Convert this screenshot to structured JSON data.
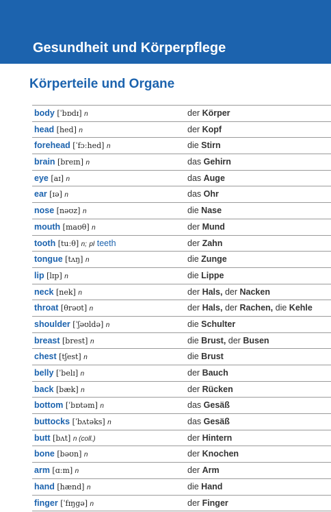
{
  "header": {
    "title": "Gesundheit und Körperpflege",
    "bg_color": "#1c63ae"
  },
  "section": {
    "title": "Körperteile und Organe",
    "color": "#1c63ae"
  },
  "vocab": [
    {
      "word": "body",
      "ipa": "[ˈbɒdɪ]",
      "pos": "n",
      "extra": "",
      "extra_word": "",
      "de": [
        {
          "article": "der",
          "noun": "Körper"
        }
      ]
    },
    {
      "word": "head",
      "ipa": "[hed]",
      "pos": "n",
      "extra": "",
      "extra_word": "",
      "de": [
        {
          "article": "der",
          "noun": "Kopf"
        }
      ]
    },
    {
      "word": "forehead",
      "ipa": "[ˈfɔːhed]",
      "pos": "n",
      "extra": "",
      "extra_word": "",
      "de": [
        {
          "article": "die",
          "noun": "Stirn"
        }
      ]
    },
    {
      "word": "brain",
      "ipa": "[breɪn]",
      "pos": "n",
      "extra": "",
      "extra_word": "",
      "de": [
        {
          "article": "das",
          "noun": "Gehirn"
        }
      ]
    },
    {
      "word": "eye",
      "ipa": "[aɪ]",
      "pos": "n",
      "extra": "",
      "extra_word": "",
      "de": [
        {
          "article": "das",
          "noun": "Auge"
        }
      ]
    },
    {
      "word": "ear",
      "ipa": "[ɪə]",
      "pos": "n",
      "extra": "",
      "extra_word": "",
      "de": [
        {
          "article": "das",
          "noun": "Ohr"
        }
      ]
    },
    {
      "word": "nose",
      "ipa": "[nəʊz]",
      "pos": "n",
      "extra": "",
      "extra_word": "",
      "de": [
        {
          "article": "die",
          "noun": "Nase"
        }
      ]
    },
    {
      "word": "mouth",
      "ipa": "[maʊθ]",
      "pos": "n",
      "extra": "",
      "extra_word": "",
      "de": [
        {
          "article": "der",
          "noun": "Mund"
        }
      ]
    },
    {
      "word": "tooth",
      "ipa": "[tuːθ]",
      "pos": "n;",
      "extra": "pl",
      "extra_word": "teeth",
      "de": [
        {
          "article": "der",
          "noun": "Zahn"
        }
      ]
    },
    {
      "word": "tongue",
      "ipa": "[tʌŋ]",
      "pos": "n",
      "extra": "",
      "extra_word": "",
      "de": [
        {
          "article": "die",
          "noun": "Zunge"
        }
      ]
    },
    {
      "word": "lip",
      "ipa": "[lɪp]",
      "pos": "n",
      "extra": "",
      "extra_word": "",
      "de": [
        {
          "article": "die",
          "noun": "Lippe"
        }
      ]
    },
    {
      "word": "neck",
      "ipa": "[nek]",
      "pos": "n",
      "extra": "",
      "extra_word": "",
      "de": [
        {
          "article": "der",
          "noun": "Hals,"
        },
        {
          "article": "der",
          "noun": "Nacken"
        }
      ]
    },
    {
      "word": "throat",
      "ipa": "[θrəʊt]",
      "pos": "n",
      "extra": "",
      "extra_word": "",
      "de": [
        {
          "article": "der",
          "noun": "Hals,"
        },
        {
          "article": "der",
          "noun": "Rachen,"
        },
        {
          "article": "die",
          "noun": "Kehle"
        }
      ]
    },
    {
      "word": "shoulder",
      "ipa": "[ˈʃəʊldə]",
      "pos": "n",
      "extra": "",
      "extra_word": "",
      "de": [
        {
          "article": "die",
          "noun": "Schulter"
        }
      ]
    },
    {
      "word": "breast",
      "ipa": "[brest]",
      "pos": "n",
      "extra": "",
      "extra_word": "",
      "de": [
        {
          "article": "die",
          "noun": "Brust,"
        },
        {
          "article": "der",
          "noun": "Busen"
        }
      ]
    },
    {
      "word": "chest",
      "ipa": "[tʃest]",
      "pos": "n",
      "extra": "",
      "extra_word": "",
      "de": [
        {
          "article": "die",
          "noun": "Brust"
        }
      ]
    },
    {
      "word": "belly",
      "ipa": "[ˈbelɪ]",
      "pos": "n",
      "extra": "",
      "extra_word": "",
      "de": [
        {
          "article": "der",
          "noun": "Bauch"
        }
      ]
    },
    {
      "word": "back",
      "ipa": "[bæk]",
      "pos": "n",
      "extra": "",
      "extra_word": "",
      "de": [
        {
          "article": "der",
          "noun": "Rücken"
        }
      ]
    },
    {
      "word": "bottom",
      "ipa": "[ˈbɒtəm]",
      "pos": "n",
      "extra": "",
      "extra_word": "",
      "de": [
        {
          "article": "das",
          "noun": "Gesäß"
        }
      ]
    },
    {
      "word": "buttocks",
      "ipa": "[ˈbʌtəks]",
      "pos": "n",
      "extra": "",
      "extra_word": "",
      "de": [
        {
          "article": "das",
          "noun": "Gesäß"
        }
      ]
    },
    {
      "word": "butt",
      "ipa": "[bʌt]",
      "pos": "n (coll.)",
      "extra": "",
      "extra_word": "",
      "de": [
        {
          "article": "der",
          "noun": "Hintern"
        }
      ]
    },
    {
      "word": "bone",
      "ipa": "[bəʊn]",
      "pos": "n",
      "extra": "",
      "extra_word": "",
      "de": [
        {
          "article": "der",
          "noun": "Knochen"
        }
      ]
    },
    {
      "word": "arm",
      "ipa": "[ɑːm]",
      "pos": "n",
      "extra": "",
      "extra_word": "",
      "de": [
        {
          "article": "der",
          "noun": "Arm"
        }
      ]
    },
    {
      "word": "hand",
      "ipa": "[hænd]",
      "pos": "n",
      "extra": "",
      "extra_word": "",
      "de": [
        {
          "article": "die",
          "noun": "Hand"
        }
      ]
    },
    {
      "word": "finger",
      "ipa": "[ˈfɪŋgə]",
      "pos": "n",
      "extra": "",
      "extra_word": "",
      "de": [
        {
          "article": "der",
          "noun": "Finger"
        }
      ]
    }
  ]
}
